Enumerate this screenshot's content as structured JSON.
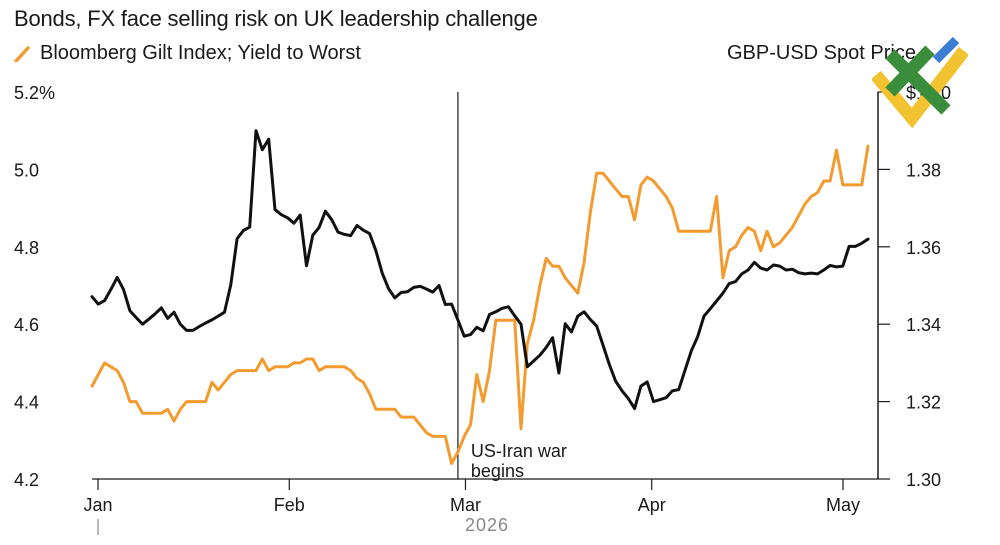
{
  "title": "Bonds, FX face selling risk on UK leadership challenge",
  "colors": {
    "orange": "#f39b2f",
    "black": "#111111",
    "logo_green": "#3a8d3a",
    "logo_blue": "#3b7fd4",
    "logo_yellow": "#f2c230"
  },
  "chart_data": {
    "type": "line",
    "x_labels": [
      "Jan",
      "Feb",
      "Mar",
      "Apr",
      "May"
    ],
    "year_label": "2026",
    "left_axis": {
      "ticks": [
        "5.2%",
        "5.0",
        "4.8",
        "4.6",
        "4.4",
        "4.2"
      ],
      "range": [
        4.2,
        5.2
      ]
    },
    "right_axis": {
      "ticks": [
        "$1.40",
        "1.38",
        "1.36",
        "1.34",
        "1.32",
        "1.30"
      ],
      "range": [
        1.3,
        1.4
      ]
    },
    "annotation": {
      "text_line1": "US-Iran war",
      "text_line2": "begins",
      "x_index": 58
    },
    "series": [
      {
        "name": "Bloomberg Gilt Index; Yield to Worst",
        "axis": "left",
        "color": "#f39b2f",
        "values": [
          4.44,
          4.47,
          4.5,
          4.49,
          4.48,
          4.45,
          4.4,
          4.4,
          4.37,
          4.37,
          4.37,
          4.37,
          4.38,
          4.35,
          4.38,
          4.4,
          4.4,
          4.4,
          4.4,
          4.45,
          4.43,
          4.45,
          4.47,
          4.48,
          4.48,
          4.48,
          4.48,
          4.51,
          4.48,
          4.49,
          4.49,
          4.49,
          4.5,
          4.5,
          4.51,
          4.51,
          4.48,
          4.49,
          4.49,
          4.49,
          4.49,
          4.48,
          4.46,
          4.45,
          4.42,
          4.38,
          4.38,
          4.38,
          4.38,
          4.36,
          4.36,
          4.36,
          4.34,
          4.32,
          4.31,
          4.31,
          4.31,
          4.24,
          4.27,
          4.31,
          4.34,
          4.47,
          4.4,
          4.48,
          4.61,
          4.61,
          4.61,
          4.61,
          4.33,
          4.55,
          4.61,
          4.7,
          4.77,
          4.75,
          4.75,
          4.72,
          4.7,
          4.68,
          4.76,
          4.89,
          4.99,
          4.99,
          4.97,
          4.95,
          4.93,
          4.93,
          4.87,
          4.96,
          4.98,
          4.97,
          4.95,
          4.93,
          4.9,
          4.84,
          4.84,
          4.84,
          4.84,
          4.84,
          4.84,
          4.93,
          4.72,
          4.79,
          4.8,
          4.83,
          4.85,
          4.84,
          4.79,
          4.84,
          4.8,
          4.81,
          4.83,
          4.85,
          4.88,
          4.91,
          4.93,
          4.94,
          4.97,
          4.97,
          5.05,
          4.96,
          4.96,
          4.96,
          4.96,
          5.06
        ]
      },
      {
        "name": "GBP-USD Spot Price",
        "axis": "right",
        "color": "#111111",
        "values": [
          1.3471,
          1.3452,
          1.3461,
          1.349,
          1.3521,
          1.349,
          1.3435,
          1.3417,
          1.34,
          1.3413,
          1.3427,
          1.3442,
          1.3415,
          1.3431,
          1.34,
          1.3384,
          1.3384,
          1.3394,
          1.3403,
          1.3411,
          1.3421,
          1.3431,
          1.3502,
          1.3621,
          1.3642,
          1.3651,
          1.39,
          1.3851,
          1.3878,
          1.3696,
          1.3683,
          1.3675,
          1.3661,
          1.3682,
          1.3551,
          1.363,
          1.365,
          1.3692,
          1.367,
          1.3638,
          1.3632,
          1.3629,
          1.3655,
          1.3643,
          1.3634,
          1.359,
          1.3532,
          1.3492,
          1.3468,
          1.3482,
          1.3484,
          1.3495,
          1.3498,
          1.3491,
          1.3483,
          1.35,
          1.3451,
          1.3452,
          1.3411,
          1.3369,
          1.3373,
          1.3392,
          1.3383,
          1.3425,
          1.3432,
          1.3441,
          1.3445,
          1.3422,
          1.34,
          1.329,
          1.3305,
          1.332,
          1.334,
          1.3365,
          1.3274,
          1.3401,
          1.338,
          1.3421,
          1.3432,
          1.3412,
          1.3395,
          1.3346,
          1.3296,
          1.3253,
          1.3228,
          1.3208,
          1.3182,
          1.324,
          1.3251,
          1.32,
          1.3205,
          1.321,
          1.3228,
          1.3231,
          1.3281,
          1.3331,
          1.3368,
          1.3421,
          1.344,
          1.346,
          1.348,
          1.3505,
          1.351,
          1.353,
          1.354,
          1.356,
          1.3545,
          1.354,
          1.3553,
          1.355,
          1.354,
          1.3542,
          1.3533,
          1.353,
          1.3532,
          1.353,
          1.354,
          1.3552,
          1.3548,
          1.355,
          1.3601,
          1.3601,
          1.3609,
          1.362
        ]
      }
    ]
  }
}
